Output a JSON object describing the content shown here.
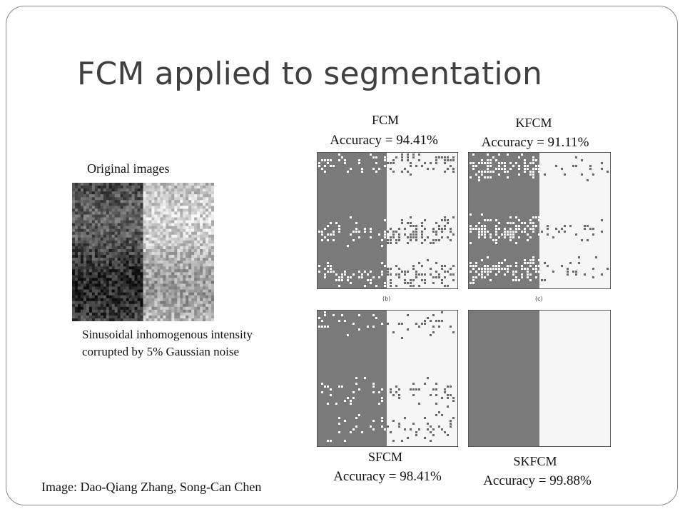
{
  "slide": {
    "title": "FCM applied to segmentation",
    "original_label": "Original images",
    "caption": "Sinusoidal inhomogenous intensity corrupted by 5% Gaussian noise",
    "credit": "Image: Dao-Qiang Zhang, Song-Can Chen"
  },
  "panels": [
    {
      "method": "FCM",
      "accuracy": "Accuracy = 94.41%",
      "sublabel": "(b)"
    },
    {
      "method": "KFCM",
      "accuracy": "Accuracy = 91.11%",
      "sublabel": "(c)"
    },
    {
      "method": "SFCM",
      "accuracy": "Accuracy = 98.41%",
      "sublabel": ""
    },
    {
      "method": "SKFCM",
      "accuracy": "Accuracy = 99.88%",
      "sublabel": ""
    }
  ],
  "colors": {
    "title": "#404040",
    "dark_region": "#7a7a7a",
    "light_region": "#f6f6f6",
    "frame": "#8a8a8a"
  }
}
